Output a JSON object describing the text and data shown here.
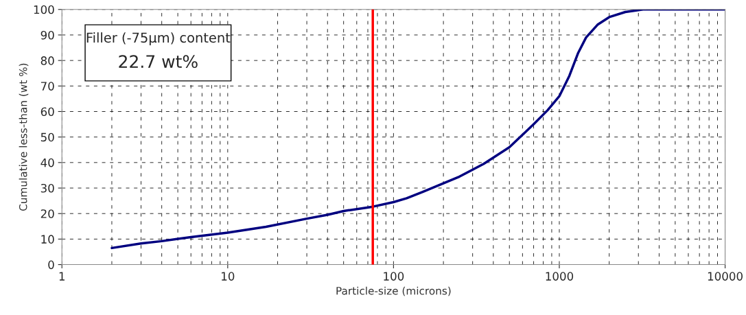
{
  "chart_data": {
    "type": "line",
    "xlabel": "Particle-size (microns)",
    "ylabel": "Cumulative less-than (wt %)",
    "annotations": [
      "Filler (-75μm) content",
      "22.7 wt%"
    ],
    "log": "x",
    "grid": true,
    "legend": false,
    "marker": "none",
    "line_style": "solid",
    "xlim": [
      1,
      10000
    ],
    "xticks": [
      1,
      10,
      100,
      1000,
      10000
    ],
    "ylim": [
      0,
      100
    ],
    "yticks": [
      0,
      10,
      20,
      30,
      40,
      50,
      60,
      70,
      80,
      90,
      100
    ],
    "ref_lines": [
      {
        "axis": "x",
        "value": 75,
        "color": "#ff0000"
      }
    ],
    "series": [
      {
        "color": "#000080",
        "x": [
          2,
          3,
          4,
          6,
          10,
          17,
          30,
          40,
          50,
          75,
          100,
          120,
          150,
          250,
          350,
          500,
          700,
          850,
          1000,
          1150,
          1300,
          1450,
          1700,
          2000,
          2500,
          3200,
          10000
        ],
        "values": [
          6.5,
          8.3,
          9.2,
          10.8,
          12.5,
          14.8,
          18,
          19.5,
          21,
          22.7,
          24.5,
          26,
          28.5,
          34.5,
          39.5,
          46,
          55,
          60.5,
          66,
          74,
          83,
          89,
          94,
          97,
          99,
          100,
          100
        ]
      }
    ]
  }
}
